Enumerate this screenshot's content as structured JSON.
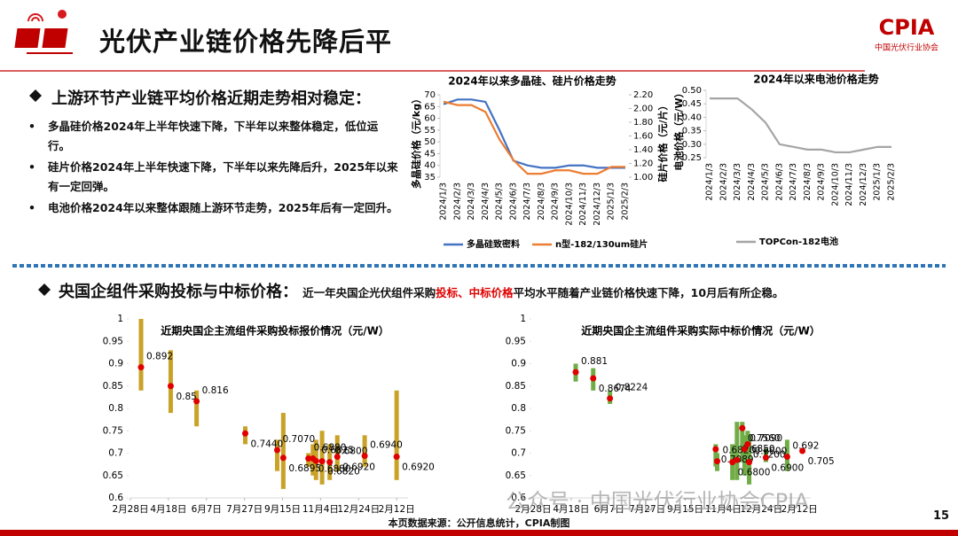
{
  "header": {
    "title": "光伏产业链价格先降后平",
    "logo": "CPIA",
    "logo_sub": "中国光伏行业协会"
  },
  "section1": {
    "heading": "上游环节产业链平均价格近期走势相对稳定：",
    "bullets": [
      "多晶硅价格2024年上半年快速下降，下半年以来整体稳定，低位运行。",
      "硅片价格2024年上半年快速下降，下半年以来先降后升，2025年以来有一定回弹。",
      "电池价格2024年以来整体跟随上游环节走势，2025年后有一定回升。"
    ]
  },
  "section2": {
    "heading": "央国企组件采购投标与中标价格：",
    "text_parts": [
      "近一年央国企光伏组件采购",
      "投标、中标价格",
      "平均水平随着产业链价格快速下降，10月后有所企稳。"
    ]
  },
  "chart_data": [
    {
      "type": "line",
      "title": "2024年以来多晶硅、硅片价格走势",
      "categories": [
        "2024/1/3",
        "2024/2/3",
        "2024/3/3",
        "2024/4/3",
        "2024/5/3",
        "2024/6/3",
        "2024/7/3",
        "2024/8/3",
        "2024/9/3",
        "2024/10/3",
        "2024/11/3",
        "2024/12/3",
        "2025/1/3",
        "2025/2/3"
      ],
      "ylabel": "多晶硅价格（元/kg）",
      "y2label": "硅片价格（元/片）",
      "ylim": [
        35,
        70
      ],
      "yticks": [
        35,
        40,
        45,
        50,
        55,
        60,
        65,
        70
      ],
      "y2lim": [
        1,
        2.2
      ],
      "y2ticks": [
        {
          "value": 1,
          "label": "1.00"
        },
        {
          "value": 1.2,
          "label": "1.20"
        },
        {
          "value": 1.4,
          "label": "1.40"
        },
        {
          "value": 1.6,
          "label": "1.60"
        },
        {
          "value": 1.8,
          "label": "1.80"
        },
        {
          "value": 2,
          "label": "2.00"
        },
        {
          "value": 2.2,
          "label": "2.20"
        }
      ],
      "series": [
        {
          "name": "多晶硅致密料",
          "color": "#4472c4",
          "values": [
            66,
            68,
            68,
            67,
            55,
            42,
            40,
            39,
            39,
            40,
            40,
            39,
            39,
            39
          ]
        },
        {
          "name": "n型-182/130um硅片",
          "color": "#ed7d31",
          "axis": "y2",
          "values": [
            2.1,
            2.05,
            2.05,
            1.95,
            1.55,
            1.25,
            1.05,
            1.05,
            1.1,
            1.1,
            1.05,
            1.05,
            1.15,
            1.15
          ]
        }
      ]
    },
    {
      "type": "line",
      "title": "2024年以来电池价格走势",
      "categories": [
        "2024/1/3",
        "2024/2/3",
        "2024/3/3",
        "2024/4/3",
        "2024/5/3",
        "2024/6/3",
        "2024/7/3",
        "2024/8/3",
        "2024/9/3",
        "2024/10/3",
        "2024/11/3",
        "2024/12/3",
        "2025/1/3",
        "2025/2/3"
      ],
      "ylabel": "电池价格（元/W）",
      "ylim": [
        0.25,
        0.5
      ],
      "yticks": [
        0.25,
        {
          "value": 0.3,
          "label": "0.30"
        },
        0.35,
        {
          "value": 0.4,
          "label": "0.40"
        },
        0.45,
        {
          "value": 0.5,
          "label": "0.50"
        }
      ],
      "series": [
        {
          "name": "TOPCon-182电池",
          "color": "#a5a5a5",
          "values": [
            0.47,
            0.47,
            0.47,
            0.43,
            0.38,
            0.3,
            0.29,
            0.28,
            0.28,
            0.27,
            0.27,
            0.28,
            0.29,
            0.29
          ]
        }
      ]
    },
    {
      "type": "errorbar",
      "title": "近期央国企主流组件采购投标报价情况（元/W）",
      "xlim": [
        0,
        365
      ],
      "xticks": [
        {
          "value": 0,
          "label": "2月28日"
        },
        {
          "value": 50,
          "label": "4月18日"
        },
        {
          "value": 100,
          "label": "6月7日"
        },
        {
          "value": 150,
          "label": "7月27日"
        },
        {
          "value": 200,
          "label": "9月15日"
        },
        {
          "value": 250,
          "label": "11月4日"
        },
        {
          "value": 300,
          "label": "12月24日"
        },
        {
          "value": 350,
          "label": "2月12日"
        }
      ],
      "ylim": [
        0.6,
        1
      ],
      "yticks": [
        0.6,
        0.65,
        0.7,
        0.75,
        0.8,
        0.85,
        0.9,
        0.95,
        1
      ],
      "bar_color": "#c9a227",
      "marker_color": "#e00000",
      "x": [
        14,
        53,
        87,
        151,
        193,
        201,
        234,
        240,
        244,
        252,
        262,
        272,
        308,
        350
      ],
      "values": [
        0.892,
        0.85,
        0.816,
        0.744,
        0.707,
        0.6895,
        0.688,
        0.688,
        0.6825,
        0.682,
        0.68,
        0.692,
        0.694,
        0.692
      ],
      "value_labels": [
        "0.892",
        "0.85",
        "0.816",
        "0.7440",
        "0.7070",
        "0.6895",
        "0.6880",
        "0.6880",
        "0.6825",
        "0.6820",
        "0.6800",
        "0.6920",
        "0.6940",
        "0.6920"
      ],
      "low": [
        0.84,
        0.79,
        0.76,
        0.72,
        0.66,
        0.62,
        0.67,
        0.65,
        0.64,
        0.63,
        0.64,
        0.66,
        0.67,
        0.64
      ],
      "high": [
        1,
        0.93,
        0.84,
        0.76,
        0.73,
        0.79,
        0.7,
        0.72,
        0.73,
        0.75,
        0.72,
        0.74,
        0.74,
        0.84
      ]
    },
    {
      "type": "errorbar",
      "title": "近期央国企主流组件采购实际中标价情况（元/W）",
      "xlim": [
        0,
        365
      ],
      "xticks": [
        {
          "value": 0,
          "label": "2月28日"
        },
        {
          "value": 50,
          "label": "4月18日"
        },
        {
          "value": 100,
          "label": "6月7日"
        },
        {
          "value": 150,
          "label": "7月27日"
        },
        {
          "value": 200,
          "label": "9月15日"
        },
        {
          "value": 250,
          "label": "11月4日"
        },
        {
          "value": 300,
          "label": "12月24日"
        },
        {
          "value": 350,
          "label": "2月12日"
        }
      ],
      "ylim": [
        0.6,
        1
      ],
      "yticks": [
        0.6,
        0.65,
        0.7,
        0.75,
        0.8,
        0.85,
        0.9,
        0.95,
        1
      ],
      "bar_color": "#70ad47",
      "marker_color": "#e00000",
      "x": [
        56,
        79,
        101,
        240,
        242,
        262,
        268,
        275,
        278,
        282,
        284,
        306,
        334,
        354
      ],
      "values": [
        0.881,
        0.8674,
        0.8224,
        0.7089,
        0.682,
        0.68,
        0.685,
        0.756,
        0.709,
        0.72,
        0.68,
        0.69,
        0.692,
        0.705
      ],
      "value_labels": [
        "0.881",
        "0.8674",
        "0.8224",
        "0.7089",
        "0.6820",
        "0.6800",
        "0.6850",
        "0.7560",
        "0.7090",
        "0.7200",
        "0.6800",
        "0.6900",
        "0.692",
        "0.705"
      ],
      "low": [
        0.86,
        0.84,
        0.81,
        0.67,
        0.66,
        0.64,
        0.64,
        0.68,
        0.65,
        0.69,
        0.63,
        0.68,
        0.66,
        0.7
      ],
      "high": [
        0.9,
        0.89,
        0.84,
        0.72,
        0.7,
        0.72,
        0.77,
        0.77,
        0.74,
        0.75,
        0.74,
        0.71,
        0.73,
        0.71
      ]
    }
  ],
  "footer": {
    "source": "本页数据来源：公开信息统计，CPIA制图",
    "page": 15,
    "watermark": "公众号 · 中国光伏行业协会CPIA"
  }
}
